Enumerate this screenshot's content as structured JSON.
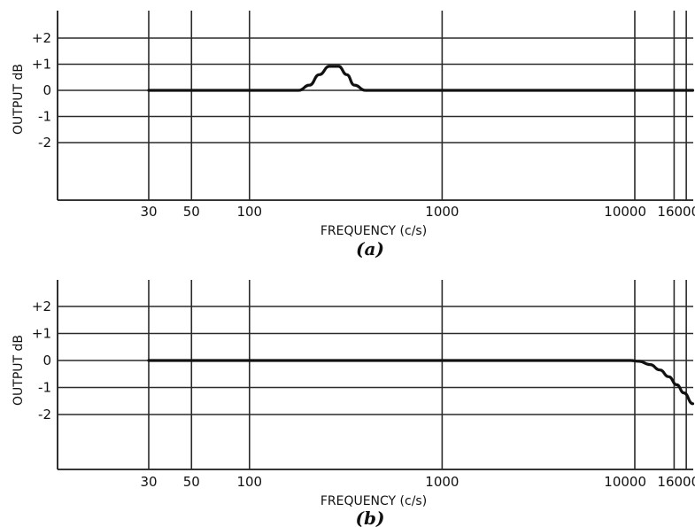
{
  "chart_data": [
    {
      "type": "line",
      "caption": "(a)",
      "xlabel": "FREQUENCY (c/s)",
      "ylabel": "OUTPUT dB",
      "xscale": "log",
      "xlim": [
        17,
        20000
      ],
      "ylim": [
        -4,
        3
      ],
      "x_ticks": [
        30,
        50,
        100,
        1000,
        10000,
        16000
      ],
      "x_tick_labels": [
        "30",
        "50",
        "100",
        "1000",
        "10000",
        "16000"
      ],
      "y_ticks": [
        2,
        1,
        0,
        -1,
        -2
      ],
      "y_tick_labels": [
        "+2",
        "+1",
        "0",
        "-1",
        "-2"
      ],
      "grid": true,
      "series": [
        {
          "x": [
            30,
            100,
            180,
            205,
            230,
            260,
            290,
            320,
            350,
            400,
            2000,
            20000
          ],
          "y": [
            0,
            0,
            0,
            0.2,
            0.6,
            0.92,
            0.92,
            0.6,
            0.2,
            0,
            0,
            0
          ]
        }
      ]
    },
    {
      "type": "line",
      "caption": "(b)",
      "xlabel": "FREQUENCY (c/s)",
      "ylabel": "OUTPUT dB",
      "xscale": "log",
      "xlim": [
        17,
        20000
      ],
      "ylim": [
        -4,
        3
      ],
      "x_ticks": [
        30,
        50,
        100,
        1000,
        10000,
        16000
      ],
      "x_tick_labels": [
        "30",
        "50",
        "100",
        "1000",
        "10000",
        "16000"
      ],
      "y_ticks": [
        2,
        1,
        0,
        -1,
        -2
      ],
      "y_tick_labels": [
        "+2",
        "+1",
        "0",
        "-1",
        "-2"
      ],
      "grid": true,
      "series": [
        {
          "x": [
            30,
            1000,
            8000,
            9500,
            10500,
            12000,
            13500,
            15000,
            16500,
            18000,
            20000
          ],
          "y": [
            0,
            0,
            0,
            0,
            -0.03,
            -0.15,
            -0.35,
            -0.6,
            -0.9,
            -1.2,
            -1.6
          ]
        }
      ]
    }
  ]
}
